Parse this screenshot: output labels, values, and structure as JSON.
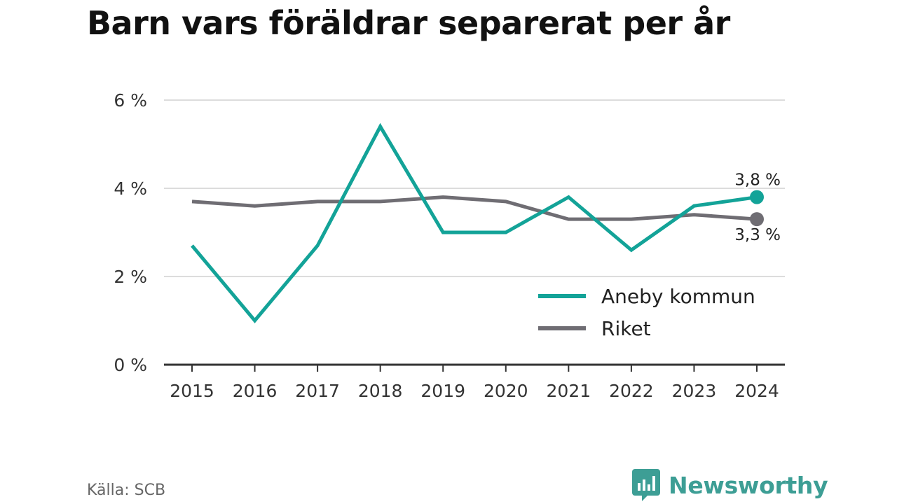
{
  "chart_data": {
    "type": "line",
    "title": "Barn vars föräldrar separerat per år",
    "x": [
      "2015",
      "2016",
      "2017",
      "2018",
      "2019",
      "2020",
      "2021",
      "2022",
      "2023",
      "2024"
    ],
    "ylim": [
      0,
      6
    ],
    "yticks": [
      0,
      2,
      4,
      6
    ],
    "ytick_labels": [
      "0 %",
      "2 %",
      "4 %",
      "6 %"
    ],
    "grid": true,
    "legend_position": "lower-right",
    "series": [
      {
        "name": "Aneby kommun",
        "color": "#13a398",
        "values": [
          2.7,
          1.0,
          2.7,
          5.4,
          3.0,
          3.0,
          3.8,
          2.6,
          3.6,
          3.8
        ],
        "end_label": "3,8 %"
      },
      {
        "name": "Riket",
        "color": "#6f6d73",
        "values": [
          3.7,
          3.6,
          3.7,
          3.7,
          3.8,
          3.7,
          3.3,
          3.3,
          3.4,
          3.3
        ],
        "end_label": "3,3 %"
      }
    ]
  },
  "footer": {
    "source": "Källa: SCB",
    "brand_name": "Newsworthy",
    "brand_icon": "newsworthy-logo-icon",
    "brand_color": "#3d9e95"
  }
}
